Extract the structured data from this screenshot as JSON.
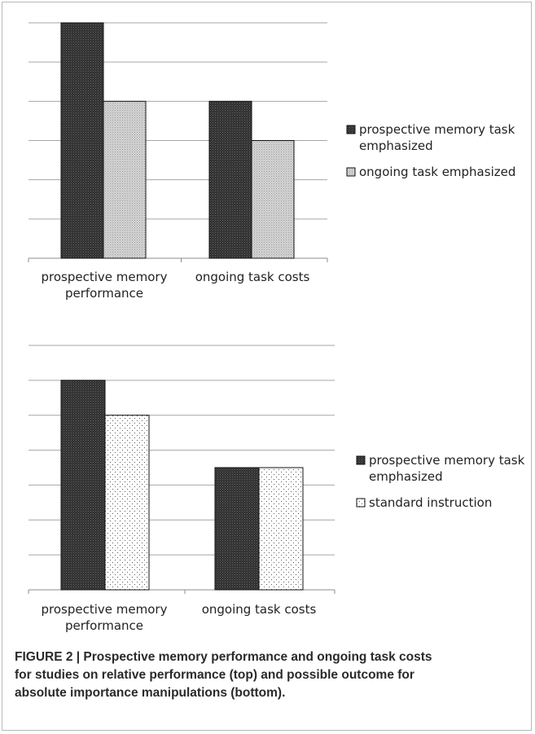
{
  "chart_data": [
    {
      "type": "bar",
      "title": "",
      "xlabel": "",
      "ylabel": "",
      "categories": [
        [
          "prospective memory",
          "performance"
        ],
        [
          "ongoing task costs"
        ]
      ],
      "ylim": [
        0,
        6
      ],
      "grid": true,
      "legend_position": "right",
      "series": [
        {
          "name": [
            "prospective memory task",
            "emphasized"
          ],
          "values": [
            6,
            4
          ],
          "color": "#3a3a3a",
          "pattern": "dark-dots"
        },
        {
          "name": [
            "ongoing task emphasized"
          ],
          "values": [
            4,
            3
          ],
          "color": "#c8c8c8",
          "pattern": "light-dots"
        }
      ]
    },
    {
      "type": "bar",
      "title": "",
      "xlabel": "",
      "ylabel": "",
      "categories": [
        [
          "prospective memory",
          "performance"
        ],
        [
          "ongoing task costs"
        ]
      ],
      "ylim": [
        0,
        7
      ],
      "grid": true,
      "legend_position": "right",
      "series": [
        {
          "name": [
            "prospective memory task",
            "emphasized"
          ],
          "values": [
            6,
            3.5
          ],
          "color": "#3a3a3a",
          "pattern": "dark-dots"
        },
        {
          "name": [
            "standard  instruction"
          ],
          "values": [
            5,
            3.5
          ],
          "color": "#ffffff",
          "pattern": "sparse-dots"
        }
      ]
    }
  ],
  "caption": [
    "FIGURE 2 | Prospective memory performance and ongoing task costs",
    "for studies on relative performance (top) and possible outcome for",
    "absolute importance manipulations (bottom)."
  ]
}
